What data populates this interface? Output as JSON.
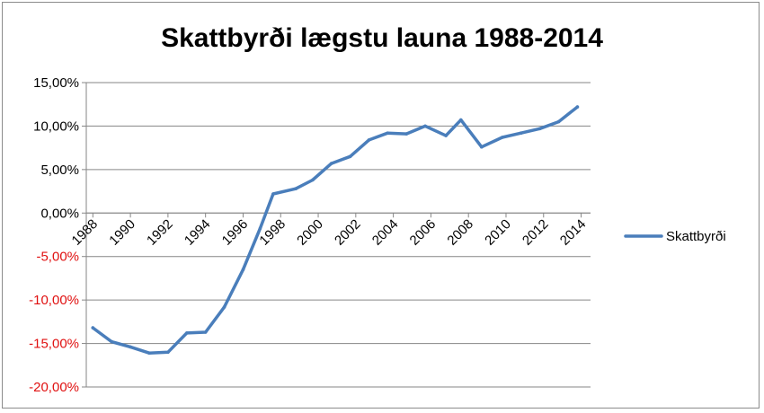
{
  "chart_data": {
    "type": "line",
    "title": "Skattbyrði lægstu launa 1988-2014",
    "xlabel": "",
    "ylabel": "",
    "ylim": [
      -20,
      15
    ],
    "y_ticks": [
      15,
      10,
      5,
      0,
      -5,
      -10,
      -15,
      -20
    ],
    "y_tick_labels": [
      "15,00%",
      "10,00%",
      "5,00%",
      "0,00%",
      "-5,00%",
      "-10,00%",
      "-15,00%",
      "-20,00%"
    ],
    "x_tick_labels": [
      "1988",
      "1990",
      "1992",
      "1994",
      "1996",
      "1998",
      "2000",
      "2002",
      "2004",
      "2006",
      "2008",
      "2010",
      "2012",
      "2014"
    ],
    "grid": true,
    "legend_position": "right",
    "colors": {
      "line": "#4a7ebb",
      "positive_tick": "#000000",
      "negative_tick": "#e01010",
      "grid": "#868686"
    },
    "series": [
      {
        "name": "Skattbyrði",
        "points": [
          [
            1988.0,
            -13.2
          ],
          [
            1989.0,
            -14.8
          ],
          [
            1990.0,
            -15.4
          ],
          [
            1991.0,
            -16.1
          ],
          [
            1992.0,
            -16.0
          ],
          [
            1993.0,
            -13.8
          ],
          [
            1994.0,
            -13.7
          ],
          [
            1995.0,
            -10.8
          ],
          [
            1996.0,
            -6.5
          ],
          [
            1996.9,
            -1.8
          ],
          [
            1997.6,
            2.2
          ],
          [
            1998.8,
            2.8
          ],
          [
            1999.7,
            3.8
          ],
          [
            2000.7,
            5.7
          ],
          [
            2001.7,
            6.5
          ],
          [
            2002.7,
            8.4
          ],
          [
            2003.7,
            9.2
          ],
          [
            2004.7,
            9.1
          ],
          [
            2005.7,
            10.0
          ],
          [
            2006.8,
            8.9
          ],
          [
            2007.6,
            10.7
          ],
          [
            2008.7,
            7.6
          ],
          [
            2009.8,
            8.7
          ],
          [
            2010.8,
            9.2
          ],
          [
            2011.8,
            9.7
          ],
          [
            2012.8,
            10.5
          ],
          [
            2013.8,
            12.2
          ]
        ]
      }
    ]
  }
}
